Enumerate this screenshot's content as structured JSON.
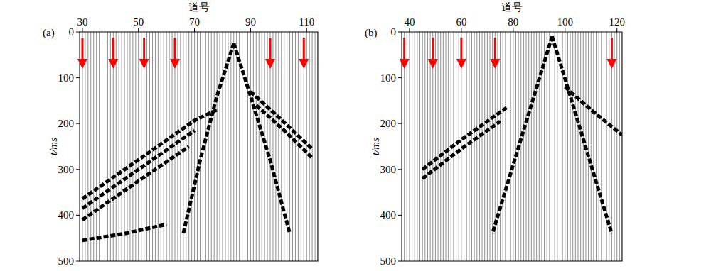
{
  "chart_data": [
    {
      "type": "seismic_wiggle",
      "panel_label": "(a)",
      "xlabel": "道号",
      "ylabel": "t/ms",
      "xlim": [
        29,
        114
      ],
      "xticks": [
        30,
        50,
        70,
        90,
        110
      ],
      "ylim": [
        0,
        500
      ],
      "yticks": [
        0,
        100,
        200,
        300,
        400,
        500
      ],
      "arrows": {
        "x": [
          30,
          41,
          52,
          63,
          97,
          109
        ],
        "color": "#ff0000"
      },
      "series": [
        {
          "color": "#000000",
          "x": [
            30,
            50,
            70,
            78
          ],
          "values": [
            364,
            279,
            193,
            170
          ]
        },
        {
          "color": "#000000",
          "x": [
            30,
            50,
            70
          ],
          "values": [
            385,
            300,
            215
          ]
        },
        {
          "color": "#000000",
          "x": [
            30,
            50,
            68
          ],
          "values": [
            410,
            325,
            250
          ]
        },
        {
          "color": "#000000",
          "x": [
            30,
            45,
            60
          ],
          "values": [
            455,
            440,
            420
          ]
        },
        {
          "color": "#000000",
          "x": [
            84,
            78,
            72,
            66
          ],
          "values": [
            25,
            140,
            280,
            440
          ]
        },
        {
          "color": "#000000",
          "x": [
            84,
            90,
            97,
            104
          ],
          "values": [
            25,
            140,
            280,
            440
          ]
        },
        {
          "color": "#000000",
          "x": [
            90,
            100,
            112
          ],
          "values": [
            130,
            186,
            255
          ]
        },
        {
          "color": "#000000",
          "x": [
            92,
            102,
            112
          ],
          "values": [
            160,
            215,
            275
          ]
        }
      ]
    },
    {
      "type": "seismic_wiggle",
      "panel_label": "(b)",
      "xlabel": "道号",
      "ylabel": "t/ms",
      "xlim": [
        37,
        122
      ],
      "xticks": [
        40,
        60,
        80,
        100,
        120
      ],
      "ylim": [
        0,
        500
      ],
      "yticks": [
        0,
        100,
        200,
        300,
        400,
        500
      ],
      "arrows": {
        "x": [
          38,
          49,
          60,
          73,
          118
        ],
        "color": "#ff0000"
      },
      "series": [
        {
          "color": "#000000",
          "x": [
            45,
            60,
            78
          ],
          "values": [
            300,
            235,
            163
          ]
        },
        {
          "color": "#000000",
          "x": [
            45,
            60,
            75
          ],
          "values": [
            320,
            255,
            195
          ]
        },
        {
          "color": "#000000",
          "x": [
            95,
            88,
            80,
            72
          ],
          "values": [
            10,
            140,
            290,
            440
          ]
        },
        {
          "color": "#000000",
          "x": [
            95,
            102,
            110,
            118
          ],
          "values": [
            10,
            140,
            290,
            440
          ]
        },
        {
          "color": "#000000",
          "x": [
            100,
            110,
            122
          ],
          "values": [
            120,
            170,
            225
          ]
        }
      ]
    }
  ]
}
